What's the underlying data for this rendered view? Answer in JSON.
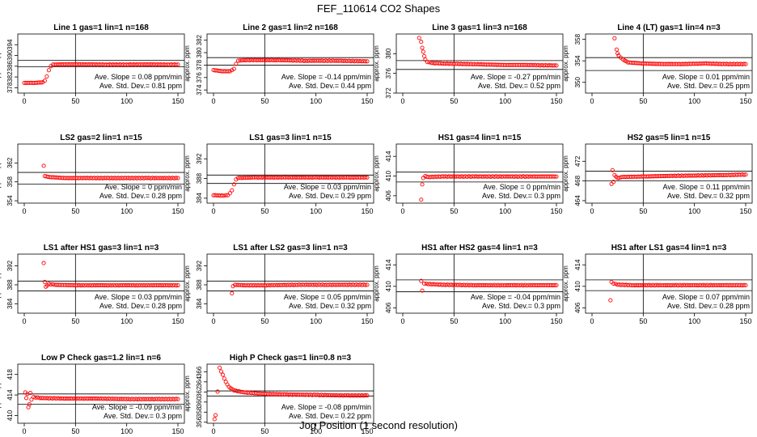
{
  "figure": {
    "title": "FEF_110614 CO2 Shapes",
    "xlabel": "Jog Position (1 second resolution)"
  },
  "colors": {
    "points": "#ff0000",
    "axes": "#000000"
  },
  "chart_data": [
    {
      "type": "scatter",
      "title": "Line 1 gas=1 lin=1 n=168",
      "ylabel": "approx. ppm",
      "xlim": [
        0,
        150
      ],
      "xticks": [
        0,
        50,
        100,
        150
      ],
      "ylim": [
        376,
        398
      ],
      "yticks": [
        378,
        382,
        386,
        390,
        394
      ],
      "hlines": [
        388.2,
        385.8
      ],
      "vline": 50,
      "slope_text": "Ave. Slope = 0.08 ppm/min",
      "sd_text": "Ave. Std. Dev.= 0.81 ppm",
      "series_points": [
        [
          0,
          379.8
        ],
        [
          10,
          379.8
        ],
        [
          18,
          380
        ],
        [
          20,
          380.6
        ],
        [
          22,
          382.2
        ],
        [
          24,
          384.5
        ],
        [
          26,
          386
        ],
        [
          28,
          386.6
        ],
        [
          40,
          386.7
        ],
        [
          60,
          386.7
        ],
        [
          80,
          386.6
        ],
        [
          100,
          386.6
        ],
        [
          120,
          386.7
        ],
        [
          140,
          386.6
        ],
        [
          150,
          386.6
        ]
      ]
    },
    {
      "type": "scatter",
      "title": "Line 2 gas=1 lin=2 n=168",
      "ylabel": "approx. ppm",
      "xlim": [
        0,
        150
      ],
      "xticks": [
        0,
        50,
        100,
        150
      ],
      "ylim": [
        373.5,
        383
      ],
      "yticks": [
        374,
        376,
        378,
        380,
        382
      ],
      "hlines": [
        379.2,
        378
      ],
      "vline": 50,
      "slope_text": "Ave. Slope = -0.14 ppm/min",
      "sd_text": "Ave. Std. Dev.= 0.44 ppm",
      "series_points": [
        [
          0,
          377.2
        ],
        [
          8,
          377
        ],
        [
          16,
          377
        ],
        [
          20,
          377.4
        ],
        [
          22,
          378.2
        ],
        [
          24,
          378.7
        ],
        [
          30,
          378.8
        ],
        [
          60,
          378.8
        ],
        [
          90,
          378.7
        ],
        [
          120,
          378.7
        ],
        [
          150,
          378.6
        ]
      ]
    },
    {
      "type": "scatter",
      "title": "Line 3 gas=1 lin=3 n=168",
      "ylabel": "approx. ppm",
      "xlim": [
        0,
        150
      ],
      "xticks": [
        0,
        50,
        100,
        150
      ],
      "ylim": [
        372,
        384
      ],
      "yticks": [
        372,
        376,
        380
      ],
      "hlines": [
        378.6,
        376.8
      ],
      "vline": 50,
      "slope_text": "Ave. Slope = -0.27 ppm/min",
      "sd_text": "Ave. Std. Dev.= 0.52 ppm",
      "series_points": [
        [
          16,
          383.2
        ],
        [
          18,
          382.4
        ],
        [
          19,
          381.2
        ],
        [
          20,
          380.4
        ],
        [
          21,
          379.5
        ],
        [
          22,
          378.8
        ],
        [
          24,
          378.3
        ],
        [
          30,
          378.1
        ],
        [
          40,
          378
        ],
        [
          60,
          377.9
        ],
        [
          80,
          377.8
        ],
        [
          100,
          377.7
        ],
        [
          120,
          377.7
        ],
        [
          150,
          377.6
        ]
      ]
    },
    {
      "type": "scatter",
      "title": "Line 4 (LT) gas=1 lin=4 n=3",
      "ylabel": "approx. ppm",
      "xlim": [
        0,
        150
      ],
      "xticks": [
        0,
        50,
        100,
        150
      ],
      "ylim": [
        348,
        359
      ],
      "yticks": [
        350,
        354,
        358
      ],
      "hlines": [
        354.6,
        352.2
      ],
      "vline": 50,
      "slope_text": "Ave. Slope = 0.01 ppm/min",
      "sd_text": "Ave. Std. Dev.= 0.25 ppm",
      "series_points": [
        [
          22,
          358.2
        ],
        [
          24,
          356.1
        ],
        [
          25,
          355.4
        ],
        [
          26,
          355
        ],
        [
          28,
          354.6
        ],
        [
          30,
          354.3
        ],
        [
          35,
          353.7
        ],
        [
          50,
          353.5
        ],
        [
          70,
          353.4
        ],
        [
          90,
          353.4
        ],
        [
          110,
          353.5
        ],
        [
          130,
          353.4
        ],
        [
          150,
          353.4
        ]
      ]
    },
    {
      "type": "scatter",
      "title": "LS2 gas=2 lin=1 n=15",
      "ylabel": "approx. ppm",
      "xlim": [
        0,
        150
      ],
      "xticks": [
        0,
        50,
        100,
        150
      ],
      "ylim": [
        353.5,
        366
      ],
      "yticks": [
        354,
        358,
        362
      ],
      "hlines": [
        360,
        357.5
      ],
      "vline": 50,
      "slope_text": "Ave. Slope = 0 ppm/min",
      "sd_text": "Ave. Std. Dev.= 0.28 ppm",
      "series_points": [
        [
          19,
          361.4
        ],
        [
          20,
          359.2
        ],
        [
          25,
          359
        ],
        [
          40,
          358.8
        ],
        [
          60,
          358.8
        ],
        [
          80,
          358.8
        ],
        [
          100,
          358.8
        ],
        [
          120,
          358.8
        ],
        [
          150,
          358.8
        ]
      ]
    },
    {
      "type": "scatter",
      "title": "LS1 gas=3 lin=1 n=15",
      "ylabel": "approx. ppm",
      "xlim": [
        0,
        150
      ],
      "xticks": [
        0,
        50,
        100,
        150
      ],
      "ylim": [
        383,
        395
      ],
      "yticks": [
        384,
        388,
        392
      ],
      "hlines": [
        388.7,
        387
      ],
      "vline": 50,
      "slope_text": "Ave. Slope = 0.03 ppm/min",
      "sd_text": "Ave. Std. Dev.= 0.29 ppm",
      "series_points": [
        [
          0,
          384.6
        ],
        [
          10,
          384.5
        ],
        [
          14,
          384.6
        ],
        [
          16,
          385
        ],
        [
          18,
          385.6
        ],
        [
          20,
          386.8
        ],
        [
          22,
          387.8
        ],
        [
          24,
          388.1
        ],
        [
          40,
          388.2
        ],
        [
          70,
          388.2
        ],
        [
          100,
          388.2
        ],
        [
          130,
          388.2
        ],
        [
          150,
          388.2
        ]
      ]
    },
    {
      "type": "scatter",
      "title": "HS1 gas=4 lin=1 n=15",
      "ylabel": "approx. ppm",
      "xlim": [
        0,
        150
      ],
      "xticks": [
        0,
        50,
        100,
        150
      ],
      "ylim": [
        404.5,
        416.5
      ],
      "yticks": [
        406,
        410,
        414
      ],
      "hlines": [
        410.8,
        408.8
      ],
      "vline": 50,
      "slope_text": "Ave. Slope = 0 ppm/min",
      "sd_text": "Ave. Std. Dev.= 0.3 ppm",
      "series_points": [
        [
          18,
          405.2
        ],
        [
          19,
          408.3
        ],
        [
          20,
          409.6
        ],
        [
          22,
          410
        ],
        [
          25,
          409.8
        ],
        [
          40,
          409.9
        ],
        [
          70,
          409.9
        ],
        [
          100,
          409.9
        ],
        [
          130,
          409.9
        ],
        [
          150,
          409.9
        ]
      ]
    },
    {
      "type": "scatter",
      "title": "HS2 gas=5 lin=1 n=15",
      "ylabel": "approx. ppm",
      "xlim": [
        0,
        150
      ],
      "xticks": [
        0,
        50,
        100,
        150
      ],
      "ylim": [
        463.5,
        475.5
      ],
      "yticks": [
        464,
        468,
        472
      ],
      "hlines": [
        470,
        468
      ],
      "vline": 50,
      "slope_text": "Ave. Slope = 0.11 ppm/min",
      "sd_text": "Ave. Std. Dev.= 0.32 ppm",
      "series_points": [
        [
          19,
          467.4
        ],
        [
          20,
          470.2
        ],
        [
          21,
          467.8
        ],
        [
          22,
          469.2
        ],
        [
          25,
          468.6
        ],
        [
          30,
          468.8
        ],
        [
          50,
          468.9
        ],
        [
          70,
          469
        ],
        [
          100,
          469.1
        ],
        [
          130,
          469.2
        ],
        [
          150,
          469.3
        ]
      ]
    },
    {
      "type": "scatter",
      "title": "LS1 after HS1 gas=3 lin=1 n=3",
      "ylabel": "approx. ppm",
      "xlim": [
        0,
        150
      ],
      "xticks": [
        0,
        50,
        100,
        150
      ],
      "ylim": [
        382,
        394.5
      ],
      "yticks": [
        384,
        388,
        392
      ],
      "hlines": [
        388.8,
        386.7
      ],
      "vline": 50,
      "slope_text": "Ave. Slope = 0.03 ppm/min",
      "sd_text": "Ave. Std. Dev.= 0.28 ppm",
      "series_points": [
        [
          19,
          392.6
        ],
        [
          20,
          388.6
        ],
        [
          21,
          387.6
        ],
        [
          24,
          388.2
        ],
        [
          30,
          388
        ],
        [
          50,
          387.9
        ],
        [
          80,
          387.9
        ],
        [
          110,
          387.9
        ],
        [
          150,
          387.9
        ]
      ]
    },
    {
      "type": "scatter",
      "title": "LS1 after LS2 gas=3 lin=1 n=3",
      "ylabel": "approx. ppm",
      "xlim": [
        0,
        150
      ],
      "xticks": [
        0,
        50,
        100,
        150
      ],
      "ylim": [
        382,
        394.5
      ],
      "yticks": [
        384,
        388,
        392
      ],
      "hlines": [
        388.8,
        386.7
      ],
      "vline": 50,
      "slope_text": "Ave. Slope = 0.05 ppm/min",
      "sd_text": "Ave. Std. Dev.= 0.32 ppm",
      "series_points": [
        [
          18,
          386.2
        ],
        [
          19,
          387.7
        ],
        [
          21,
          388
        ],
        [
          30,
          387.9
        ],
        [
          50,
          387.9
        ],
        [
          80,
          388
        ],
        [
          110,
          388
        ],
        [
          150,
          388
        ]
      ]
    },
    {
      "type": "scatter",
      "title": "HS1 after HS2 gas=4 lin=1 n=3",
      "ylabel": "approx. ppm",
      "xlim": [
        0,
        150
      ],
      "xticks": [
        0,
        50,
        100,
        150
      ],
      "ylim": [
        405,
        416
      ],
      "yticks": [
        406,
        410,
        414
      ],
      "hlines": [
        411.2,
        409
      ],
      "vline": 50,
      "slope_text": "Ave. Slope = -0.04 ppm/min",
      "sd_text": "Ave. Std. Dev.= 0.3 ppm",
      "series_points": [
        [
          18,
          411
        ],
        [
          19,
          409.2
        ],
        [
          21,
          410.5
        ],
        [
          25,
          410.4
        ],
        [
          40,
          410.3
        ],
        [
          70,
          410.2
        ],
        [
          100,
          410.2
        ],
        [
          130,
          410.2
        ],
        [
          150,
          410.2
        ]
      ]
    },
    {
      "type": "scatter",
      "title": "HS1 after LS1 gas=4 lin=1 n=3",
      "ylabel": "approx. ppm",
      "xlim": [
        0,
        150
      ],
      "xticks": [
        0,
        50,
        100,
        150
      ],
      "ylim": [
        405,
        416
      ],
      "yticks": [
        406,
        410,
        414
      ],
      "hlines": [
        411.2,
        409.2
      ],
      "vline": 50,
      "slope_text": "Ave. Slope = 0.07 ppm/min",
      "sd_text": "Ave. Std. Dev.= 0.28 ppm",
      "series_points": [
        [
          18,
          407.4
        ],
        [
          19,
          410.8
        ],
        [
          21,
          410.5
        ],
        [
          25,
          410.3
        ],
        [
          40,
          410.2
        ],
        [
          70,
          410.2
        ],
        [
          100,
          410.2
        ],
        [
          130,
          410.2
        ],
        [
          150,
          410.2
        ]
      ]
    },
    {
      "type": "scatter",
      "title": "Low P Check gas=1.2 lin=1 n=6",
      "ylabel": "approx. ppm",
      "xlim": [
        0,
        150
      ],
      "xticks": [
        0,
        50,
        100,
        150
      ],
      "ylim": [
        408.5,
        420
      ],
      "yticks": [
        410,
        414,
        418
      ],
      "hlines": [
        414.2,
        412.2
      ],
      "vline": 50,
      "slope_text": "Ave. Slope = -0.09 ppm/min",
      "sd_text": "Ave. Std. Dev.= 0.3 ppm",
      "series_points": [
        [
          1,
          414.5
        ],
        [
          2,
          413.4
        ],
        [
          3,
          414.2
        ],
        [
          4,
          411.6
        ],
        [
          5,
          412.2
        ],
        [
          6,
          414.4
        ],
        [
          7,
          413.1
        ],
        [
          9,
          413.6
        ],
        [
          15,
          413.4
        ],
        [
          40,
          413.3
        ],
        [
          70,
          413.3
        ],
        [
          100,
          413.2
        ],
        [
          130,
          413.2
        ],
        [
          150,
          413.2
        ]
      ]
    },
    {
      "type": "scatter",
      "title": "High P Check gas=1 lin=0.8 n=3",
      "ylabel": "approx. ppm",
      "xlim": [
        0,
        150
      ],
      "xticks": [
        0,
        50,
        100,
        150
      ],
      "ylim": [
        355.8,
        367.5
      ],
      "yticks": [
        356,
        358,
        360,
        362,
        364,
        366
      ],
      "hlines": [
        362.2,
        361.2
      ],
      "vline": 50,
      "slope_text": "Ave. Slope = -0.08 ppm/min",
      "sd_text": "Ave. Std. Dev.= 0.22 ppm",
      "series_points": [
        [
          1,
          356.6
        ],
        [
          2,
          357.4
        ],
        [
          6,
          366.8
        ],
        [
          9,
          365.4
        ],
        [
          12,
          364
        ],
        [
          15,
          363
        ],
        [
          20,
          362.3
        ],
        [
          30,
          361.9
        ],
        [
          50,
          361.6
        ],
        [
          70,
          361.5
        ],
        [
          100,
          361.4
        ],
        [
          130,
          361.3
        ],
        [
          150,
          361.3
        ]
      ]
    }
  ]
}
